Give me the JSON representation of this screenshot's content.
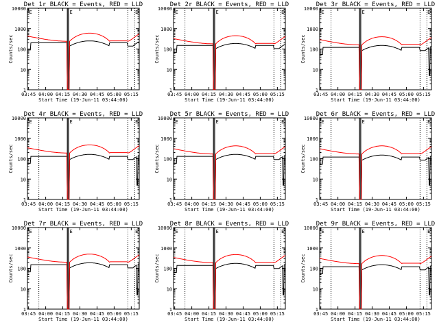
{
  "chart_data": [
    {
      "type": "line",
      "title": "Det 1r BLACK = Events, RED = LLD",
      "xlabel": "Start Time (19-Jun-11 03:44:00)",
      "ylabel": "Counts/sec",
      "yscale": "log",
      "ylim": [
        1,
        10000
      ],
      "xlim_minutes": [
        0,
        98
      ],
      "x_ticks": [
        "03:45",
        "04:00",
        "04:15",
        "04:30",
        "04:45",
        "05:00",
        "05:15"
      ],
      "y_ticks": [
        "1",
        "10",
        "100",
        "1000",
        "10000"
      ],
      "series": [
        {
          "name": "BLACK = Events",
          "color": "#000000",
          "profile": "events",
          "base": 200
        },
        {
          "name": "RED = LLD",
          "color": "#ff0000",
          "profile": "lld",
          "base": 240
        }
      ]
    },
    {
      "type": "line",
      "title": "Det 2r BLACK = Events, RED = LLD",
      "xlabel": "Start Time (19-Jun-11 03:44:00)",
      "ylabel": "Counts/sec",
      "yscale": "log",
      "ylim": [
        1,
        10000
      ],
      "xlim_minutes": [
        0,
        98
      ],
      "x_ticks": [
        "03:45",
        "04:00",
        "04:15",
        "04:30",
        "04:45",
        "05:00",
        "05:15"
      ],
      "y_ticks": [
        "1",
        "10",
        "100",
        "1000",
        "10000"
      ],
      "series": [
        {
          "name": "BLACK = Events",
          "color": "#000000",
          "profile": "events",
          "base": 150
        },
        {
          "name": "RED = LLD",
          "color": "#ff0000",
          "profile": "lld",
          "base": 180
        }
      ]
    },
    {
      "type": "line",
      "title": "Det 3r BLACK = Events, RED = LLD",
      "xlabel": "Start Time (19-Jun-11 03:44:00)",
      "ylabel": "Counts/sec",
      "yscale": "log",
      "ylim": [
        1,
        10000
      ],
      "xlim_minutes": [
        0,
        98
      ],
      "x_ticks": [
        "03:45",
        "04:00",
        "04:15",
        "04:30",
        "04:45",
        "05:00",
        "05:15"
      ],
      "y_ticks": [
        "1",
        "10",
        "100",
        "1000",
        "10000"
      ],
      "series": [
        {
          "name": "BLACK = Events",
          "color": "#000000",
          "profile": "events_drop",
          "base": 120
        },
        {
          "name": "RED = LLD",
          "color": "#ff0000",
          "profile": "lld",
          "base": 160
        }
      ]
    },
    {
      "type": "line",
      "title": "Det 4r BLACK = Events, RED = LLD",
      "xlabel": "Start Time (19-Jun-11 03:44:00)",
      "ylabel": "Counts/sec",
      "yscale": "log",
      "ylim": [
        1,
        10000
      ],
      "xlim_minutes": [
        0,
        98
      ],
      "x_ticks": [
        "03:45",
        "04:00",
        "04:15",
        "04:30",
        "04:45",
        "05:00",
        "05:15"
      ],
      "y_ticks": [
        "1",
        "10",
        "100",
        "1000",
        "10000"
      ],
      "series": [
        {
          "name": "BLACK = Events",
          "color": "#000000",
          "profile": "events_drop",
          "base": 130
        },
        {
          "name": "RED = LLD",
          "color": "#ff0000",
          "profile": "lld",
          "base": 190
        }
      ]
    },
    {
      "type": "line",
      "title": "Det 5r BLACK = Events, RED = LLD",
      "xlabel": "Start Time (19-Jun-11 03:44:00)",
      "ylabel": "Counts/sec",
      "yscale": "log",
      "ylim": [
        1,
        10000
      ],
      "xlim_minutes": [
        0,
        98
      ],
      "x_ticks": [
        "03:45",
        "04:00",
        "04:15",
        "04:30",
        "04:45",
        "05:00",
        "05:15"
      ],
      "y_ticks": [
        "1",
        "10",
        "100",
        "1000",
        "10000"
      ],
      "series": [
        {
          "name": "BLACK = Events",
          "color": "#000000",
          "profile": "events_drop",
          "base": 130
        },
        {
          "name": "RED = LLD",
          "color": "#ff0000",
          "profile": "lld",
          "base": 170
        }
      ]
    },
    {
      "type": "line",
      "title": "Det 6r BLACK = Events, RED = LLD",
      "xlabel": "Start Time (19-Jun-11 03:44:00)",
      "ylabel": "Counts/sec",
      "yscale": "log",
      "ylim": [
        1,
        10000
      ],
      "xlim_minutes": [
        0,
        98
      ],
      "x_ticks": [
        "03:45",
        "04:00",
        "04:15",
        "04:30",
        "04:45",
        "05:00",
        "05:15"
      ],
      "y_ticks": [
        "1",
        "10",
        "100",
        "1000",
        "10000"
      ],
      "series": [
        {
          "name": "BLACK = Events",
          "color": "#000000",
          "profile": "events_drop",
          "base": 120
        },
        {
          "name": "RED = LLD",
          "color": "#ff0000",
          "profile": "lld",
          "base": 170
        }
      ]
    },
    {
      "type": "line",
      "title": "Det 7r BLACK = Events, RED = LLD",
      "xlabel": "Start Time (19-Jun-11 03:44:00)",
      "ylabel": "Counts/sec",
      "yscale": "log",
      "ylim": [
        1,
        10000
      ],
      "xlim_minutes": [
        0,
        98
      ],
      "x_ticks": [
        "03:45",
        "04:00",
        "04:15",
        "04:30",
        "04:45",
        "05:00",
        "05:15"
      ],
      "y_ticks": [
        "1",
        "10",
        "100",
        "1000",
        "10000"
      ],
      "series": [
        {
          "name": "BLACK = Events",
          "color": "#000000",
          "profile": "events_drop",
          "base": 150
        },
        {
          "name": "RED = LLD",
          "color": "#ff0000",
          "profile": "lld",
          "base": 200
        }
      ]
    },
    {
      "type": "line",
      "title": "Det 8r BLACK = Events, RED = LLD",
      "xlabel": "Start Time (19-Jun-11 03:44:00)",
      "ylabel": "Counts/sec",
      "yscale": "log",
      "ylim": [
        1,
        10000
      ],
      "xlim_minutes": [
        0,
        98
      ],
      "x_ticks": [
        "03:45",
        "04:00",
        "04:15",
        "04:30",
        "04:45",
        "05:00",
        "05:15"
      ],
      "y_ticks": [
        "1",
        "10",
        "100",
        "1000",
        "10000"
      ],
      "series": [
        {
          "name": "BLACK = Events",
          "color": "#000000",
          "profile": "events_drop",
          "base": 140
        },
        {
          "name": "RED = LLD",
          "color": "#ff0000",
          "profile": "lld",
          "base": 190
        }
      ]
    },
    {
      "type": "line",
      "title": "Det 9r BLACK = Events, RED = LLD",
      "xlabel": "Start Time (19-Jun-11 03:44:00)",
      "ylabel": "Counts/sec",
      "yscale": "log",
      "ylim": [
        1,
        10000
      ],
      "xlim_minutes": [
        0,
        98
      ],
      "x_ticks": [
        "03:45",
        "04:00",
        "04:15",
        "04:30",
        "04:45",
        "05:00",
        "05:15"
      ],
      "y_ticks": [
        "1",
        "10",
        "100",
        "1000",
        "10000"
      ],
      "series": [
        {
          "name": "BLACK = Events",
          "color": "#000000",
          "profile": "events_drop",
          "base": 120
        },
        {
          "name": "RED = LLD",
          "color": "#ff0000",
          "profile": "lld",
          "base": 170
        }
      ]
    }
  ],
  "markers": {
    "label": "E",
    "saa_start_min": 35,
    "saa_end_min": 36,
    "dotted_lines_min": [
      10,
      88,
      94
    ]
  }
}
